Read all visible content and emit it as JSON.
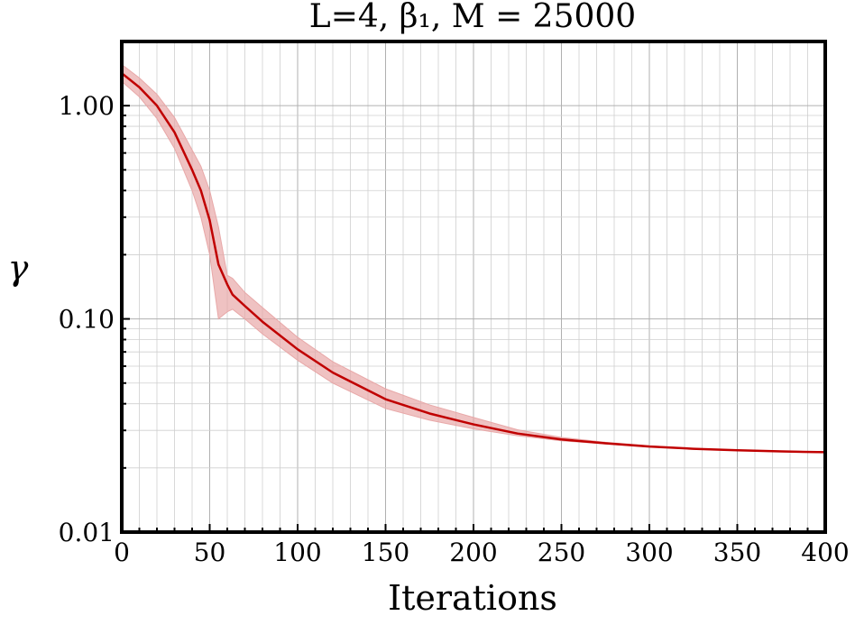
{
  "chart_data": {
    "type": "line",
    "title": "L=4, β₁, M = 25000",
    "xlabel": "Iterations",
    "ylabel": "γ",
    "xlim": [
      0,
      400
    ],
    "ylim": [
      0.01,
      2.0
    ],
    "yscale": "log",
    "grid": true,
    "grid_minor": true,
    "x_ticks": [
      0,
      50,
      100,
      150,
      200,
      250,
      300,
      350,
      400
    ],
    "x_tick_labels": [
      "0",
      "50",
      "100",
      "150",
      "200",
      "250",
      "300",
      "350",
      "400"
    ],
    "y_ticks": [
      0.01,
      0.1,
      1.0
    ],
    "y_tick_labels": [
      "0.01",
      "0.10",
      "1.00"
    ],
    "series": [
      {
        "color": "#c00000",
        "band_color": "#e8a8a8",
        "x": [
          0,
          10,
          20,
          30,
          40,
          45,
          50,
          55,
          60,
          63,
          70,
          80,
          100,
          120,
          150,
          175,
          200,
          225,
          250,
          275,
          300,
          325,
          350,
          375,
          400
        ],
        "y": [
          1.42,
          1.22,
          1.0,
          0.75,
          0.5,
          0.4,
          0.29,
          0.18,
          0.145,
          0.13,
          0.115,
          0.097,
          0.072,
          0.056,
          0.042,
          0.036,
          0.032,
          0.029,
          0.0272,
          0.0261,
          0.0252,
          0.0246,
          0.0242,
          0.0239,
          0.0237
        ],
        "y_lower": [
          1.3,
          1.1,
          0.87,
          0.63,
          0.4,
          0.3,
          0.2,
          0.1,
          0.108,
          0.111,
          0.1,
          0.085,
          0.064,
          0.05,
          0.038,
          0.0335,
          0.0305,
          0.0283,
          0.0268,
          0.0259,
          0.0251,
          0.0245,
          0.0241,
          0.0238,
          0.0236
        ],
        "y_upper": [
          1.56,
          1.35,
          1.13,
          0.88,
          0.62,
          0.52,
          0.4,
          0.27,
          0.16,
          0.155,
          0.133,
          0.113,
          0.082,
          0.063,
          0.047,
          0.0395,
          0.0345,
          0.0302,
          0.0278,
          0.0264,
          0.0254,
          0.0247,
          0.0243,
          0.024,
          0.0238
        ]
      }
    ]
  }
}
